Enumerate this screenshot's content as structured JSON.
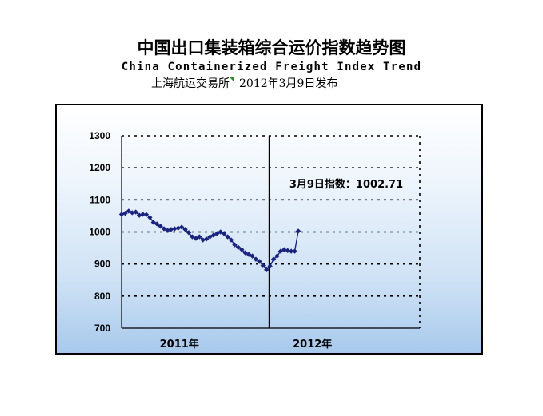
{
  "title_zh": "中国出口集装箱综合运价指数趋势图",
  "title_en": "China Containerized Freight Index Trend",
  "subtitle_source": "上海航运交易所",
  "subtitle_date": "2012年3月9日发布",
  "colors": {
    "series": "#1a237e",
    "grid": "#000000",
    "divider": "#000000"
  },
  "chart_data": {
    "type": "line",
    "title": "中国出口集装箱综合运价指数趋势图",
    "ylim": [
      700,
      1300
    ],
    "yticks": [
      700,
      800,
      900,
      1000,
      1100,
      1200,
      1300
    ],
    "grid": "horizontal-dotted",
    "x_period_labels": [
      "2011年",
      "2012年"
    ],
    "annotation": "3月9日指数：1002.71",
    "series": [
      {
        "marker": "diamond",
        "values": [
          1055,
          1058,
          1065,
          1060,
          1062,
          1052,
          1055,
          1054,
          1045,
          1030,
          1025,
          1018,
          1010,
          1005,
          1008,
          1010,
          1012,
          1015,
          1008,
          998,
          985,
          980,
          985,
          975,
          978,
          985,
          990,
          995,
          1000,
          995,
          985,
          975,
          960,
          952,
          945,
          935,
          930,
          925,
          915,
          908,
          895,
          882,
          893,
          915,
          925,
          940,
          945,
          942,
          940,
          940,
          1002.71
        ],
        "period_split_index": 42
      }
    ]
  }
}
